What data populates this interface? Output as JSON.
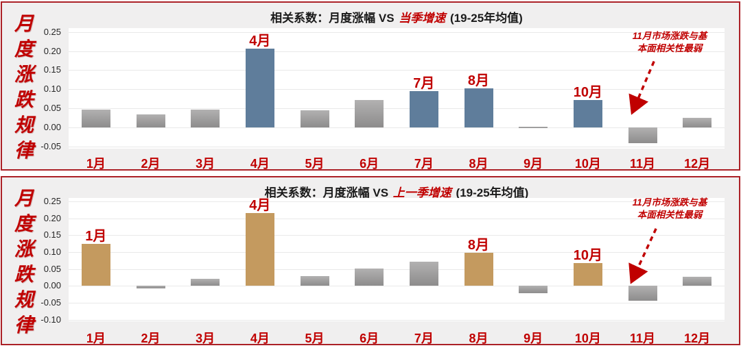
{
  "accent_red": "#c00000",
  "border_red": "#ab2026",
  "panel_bg": "#f0efef",
  "side_label": "月度涨跌规律",
  "annotation": {
    "line1": "11月市场涨跌与基",
    "line2": "本面相关性最弱",
    "full_text": "11月市场涨跌与基本面相关性最弱"
  },
  "chart_data": [
    {
      "type": "bar",
      "title_prefix": "相关系数：月度涨幅 VS",
      "title_highlight": "当季增速",
      "title_suffix": "(19-25年均值)",
      "title_full": "相关系数：月度涨幅 VS 当季增速 (19-25年均值)",
      "categories": [
        "1月",
        "2月",
        "3月",
        "4月",
        "5月",
        "6月",
        "7月",
        "8月",
        "9月",
        "10月",
        "11月",
        "12月"
      ],
      "values": [
        0.047,
        0.034,
        0.047,
        0.207,
        0.046,
        0.072,
        0.096,
        0.103,
        0.002,
        0.072,
        -0.04,
        0.026
      ],
      "highlight_indices": [
        3,
        6,
        7,
        9
      ],
      "highlight_color": "#5f7d9b",
      "default_bar_style": "gray-gradient",
      "yticks": [
        "0.25",
        "0.20",
        "0.15",
        "0.10",
        "0.05",
        "0.00",
        "-0.05"
      ],
      "ylim": [
        -0.055,
        0.26
      ],
      "grid": true,
      "legend": "none",
      "xlabel": "",
      "ylabel": ""
    },
    {
      "type": "bar",
      "title_prefix": "相关系数：月度涨幅 VS",
      "title_highlight": "上一季增速",
      "title_suffix": "(19-25年均值)",
      "title_full": "相关系数：月度涨幅 VS 上一季增速 (19-25年均值)",
      "categories": [
        "1月",
        "2月",
        "3月",
        "4月",
        "5月",
        "6月",
        "7月",
        "8月",
        "9月",
        "10月",
        "11月",
        "12月"
      ],
      "values": [
        0.125,
        -0.008,
        0.02,
        0.215,
        0.028,
        0.052,
        0.072,
        0.098,
        -0.022,
        0.068,
        -0.045,
        0.027
      ],
      "highlight_indices": [
        0,
        3,
        7,
        9
      ],
      "highlight_color": "#c49a5f",
      "default_bar_style": "gray-gradient",
      "yticks": [
        "0.25",
        "0.20",
        "0.15",
        "0.10",
        "0.05",
        "0.00",
        "-0.05",
        "-0.10"
      ],
      "ylim": [
        -0.105,
        0.26
      ],
      "grid": true,
      "legend": "none",
      "xlabel": "",
      "ylabel": ""
    }
  ]
}
